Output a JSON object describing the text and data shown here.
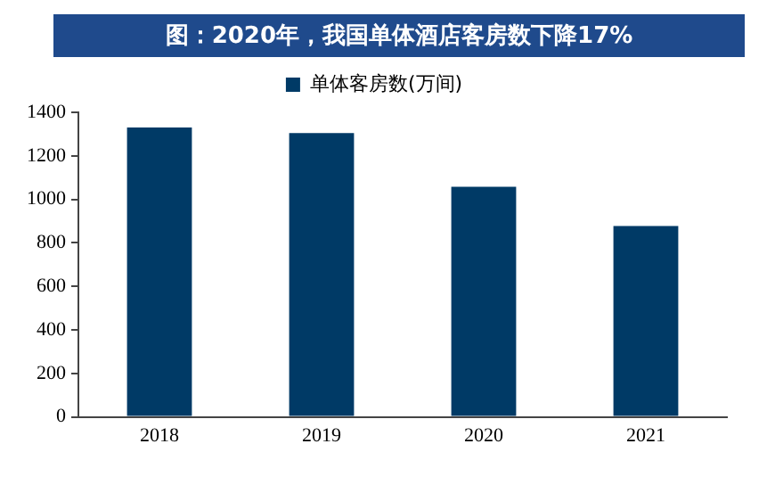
{
  "chart_data": {
    "type": "bar",
    "title": "图：2020年，我国单体酒店客房数下降17%",
    "categories": [
      "2018",
      "2019",
      "2020",
      "2021"
    ],
    "series": [
      {
        "name": "单体客房数(万间)",
        "color": "#003a66",
        "values": [
          1330,
          1305,
          1058,
          877
        ]
      }
    ],
    "ylim": [
      0,
      1400
    ],
    "yticks": [
      0,
      200,
      400,
      600,
      800,
      1000,
      1200,
      1400
    ],
    "grid": false,
    "legend": "top"
  }
}
